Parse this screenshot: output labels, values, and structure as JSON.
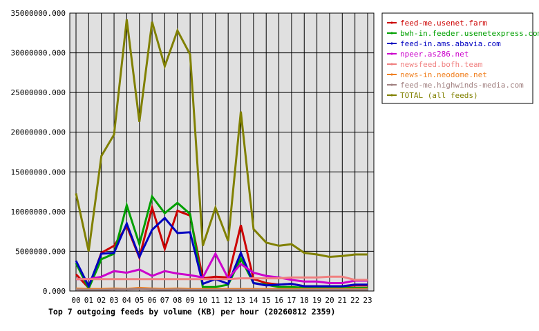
{
  "chart_data": {
    "type": "line",
    "title": "Top 7 outgoing feeds by volume (KB) per hour (20260812 2359)",
    "xlabel": "",
    "ylabel": "",
    "ylim": [
      0,
      35000000
    ],
    "y_ticks": [
      0,
      5000000,
      10000000,
      15000000,
      20000000,
      25000000,
      30000000,
      35000000
    ],
    "y_tick_labels": [
      "0.000",
      "5000000.000",
      "10000000.000",
      "15000000.000",
      "20000000.000",
      "25000000.000",
      "30000000.000",
      "35000000.000"
    ],
    "grid": true,
    "legend_position": "right",
    "background": "#e0e0e0",
    "x": [
      "00",
      "01",
      "02",
      "03",
      "04",
      "05",
      "06",
      "07",
      "08",
      "09",
      "10",
      "11",
      "12",
      "13",
      "14",
      "15",
      "16",
      "17",
      "18",
      "19",
      "20",
      "21",
      "22",
      "23"
    ],
    "series": [
      {
        "name": "feed-me.usenet.farm",
        "color": "#cc0000",
        "values": [
          2100000,
          400000,
          4800000,
          5700000,
          8200000,
          4200000,
          10500000,
          5300000,
          10100000,
          9500000,
          1600000,
          1800000,
          1700000,
          8300000,
          1500000,
          1000000,
          800000,
          900000,
          600000,
          600000,
          600000,
          600000,
          700000,
          700000
        ]
      },
      {
        "name": "bwh-in.feeder.usenetexpress.com",
        "color": "#00a000",
        "values": [
          3500000,
          300000,
          4000000,
          4700000,
          10800000,
          5900000,
          11900000,
          9800000,
          11100000,
          9700000,
          500000,
          500000,
          800000,
          4100000,
          1000000,
          800000,
          500000,
          500000,
          400000,
          400000,
          400000,
          400000,
          400000,
          400000
        ]
      },
      {
        "name": "feed-in.ams.abavia.com",
        "color": "#0000c0",
        "values": [
          3800000,
          600000,
          4700000,
          4800000,
          8500000,
          4300000,
          7700000,
          9200000,
          7300000,
          7400000,
          900000,
          1500000,
          900000,
          4800000,
          1000000,
          700000,
          800000,
          900000,
          600000,
          600000,
          600000,
          600000,
          800000,
          800000
        ]
      },
      {
        "name": "npeer.as286.net",
        "color": "#cc00cc",
        "values": [
          1500000,
          1500000,
          1800000,
          2500000,
          2300000,
          2700000,
          1900000,
          2500000,
          2200000,
          2000000,
          1700000,
          4700000,
          1600000,
          3400000,
          2300000,
          1900000,
          1700000,
          1400000,
          1200000,
          1200000,
          1000000,
          1000000,
          1300000,
          1300000
        ]
      },
      {
        "name": "newsfeed.bofh.team",
        "color": "#f08080",
        "values": [
          1500000,
          1500000,
          1500000,
          1500000,
          1500000,
          1500000,
          1500000,
          1500000,
          1500000,
          1500000,
          1500000,
          1500000,
          1500000,
          1600000,
          1600000,
          1600000,
          1600000,
          1700000,
          1700000,
          1700000,
          1800000,
          1800000,
          1400000,
          1400000
        ]
      },
      {
        "name": "news-in.neodome.net",
        "color": "#f08020",
        "values": [
          300000,
          250000,
          250000,
          300000,
          250000,
          400000,
          300000,
          250000,
          300000,
          250000,
          250000,
          250000,
          250000,
          250000,
          250000,
          250000,
          250000,
          250000,
          250000,
          250000,
          250000,
          250000,
          250000,
          250000
        ]
      },
      {
        "name": "feed-me.highwinds-media.com",
        "color": "#a08080",
        "values": [
          200000,
          150000,
          150000,
          200000,
          200000,
          250000,
          200000,
          150000,
          200000,
          150000,
          150000,
          150000,
          150000,
          150000,
          150000,
          150000,
          150000,
          150000,
          150000,
          150000,
          150000,
          150000,
          150000,
          150000
        ]
      },
      {
        "name": "TOTAL (all feeds)",
        "color": "#808000",
        "values": [
          12300000,
          5000000,
          17000000,
          19700000,
          34200000,
          21300000,
          33900000,
          28300000,
          32800000,
          29800000,
          5700000,
          10500000,
          6300000,
          22600000,
          7800000,
          6100000,
          5700000,
          5900000,
          4800000,
          4600000,
          4300000,
          4400000,
          4600000,
          4600000
        ]
      }
    ]
  }
}
